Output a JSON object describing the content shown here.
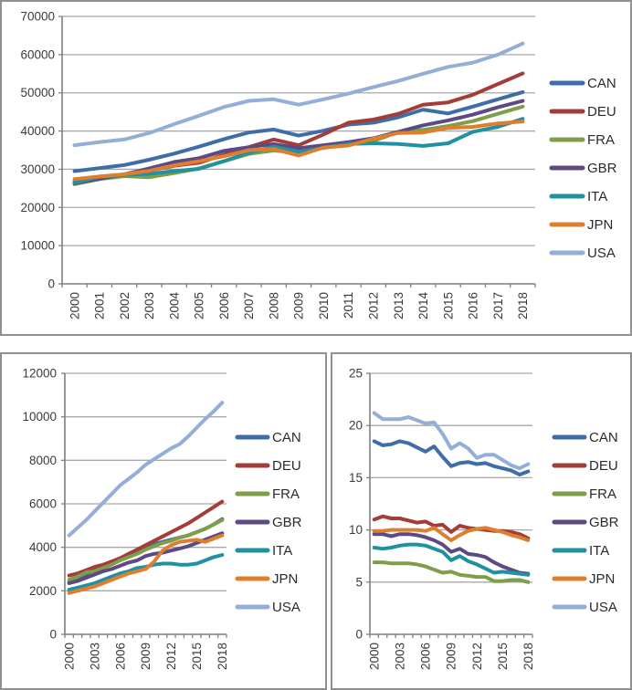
{
  "figure": {
    "description": "Three line charts comparing G7 countries 2000-2018",
    "series_names": [
      "CAN",
      "DEU",
      "FRA",
      "GBR",
      "ITA",
      "JPN",
      "USA"
    ],
    "colors": {
      "CAN": "#3e6da8",
      "DEU": "#a33d3a",
      "FRA": "#7f9e48",
      "GBR": "#5d4a84",
      "ITA": "#2191a2",
      "JPN": "#df7f2e",
      "USA": "#93afd7",
      "gridline": "#a8a8a8",
      "axis": "#7f7f7f",
      "label_text": "#3a3a3a"
    }
  },
  "chart_data": [
    {
      "type": "line",
      "title": "",
      "xlabel": "",
      "ylabel": "",
      "categories": [
        2000,
        2001,
        2002,
        2003,
        2004,
        2005,
        2006,
        2007,
        2008,
        2009,
        2010,
        2011,
        2012,
        2013,
        2014,
        2015,
        2016,
        2017,
        2018
      ],
      "xlabel_every": 1,
      "ylim": [
        0,
        70000
      ],
      "ystep": 10000,
      "yticks": [
        0,
        10000,
        20000,
        30000,
        40000,
        50000,
        60000,
        70000
      ],
      "grid": true,
      "legend_position": "right",
      "series": [
        {
          "name": "CAN",
          "values": [
            29500,
            30300,
            31100,
            32500,
            34100,
            35900,
            37900,
            39600,
            40400,
            38800,
            40100,
            41700,
            42200,
            43600,
            45600,
            44600,
            46400,
            48300,
            50200
          ]
        },
        {
          "name": "DEU",
          "values": [
            27000,
            27900,
            28500,
            29600,
            30900,
            31700,
            33800,
            35800,
            37800,
            36300,
            39100,
            42200,
            43000,
            44500,
            46900,
            47500,
            49500,
            52300,
            55100
          ]
        },
        {
          "name": "FRA",
          "values": [
            26100,
            27400,
            28200,
            27900,
            29000,
            30200,
            32100,
            34000,
            34900,
            34300,
            35600,
            36900,
            37400,
            39700,
            40300,
            41300,
            42600,
            44500,
            46400
          ]
        },
        {
          "name": "GBR",
          "values": [
            26300,
            27500,
            28700,
            30200,
            31900,
            32900,
            34800,
            35800,
            36600,
            35500,
            36300,
            37100,
            38100,
            39800,
            41500,
            42800,
            44300,
            46200,
            47900
          ]
        },
        {
          "name": "ITA",
          "values": [
            26500,
            28000,
            28500,
            28800,
            29500,
            30100,
            32100,
            34300,
            35900,
            34600,
            35600,
            36600,
            36800,
            36600,
            36100,
            36800,
            39800,
            41100,
            43200
          ]
        },
        {
          "name": "JPN",
          "values": [
            27400,
            28100,
            28700,
            29600,
            31000,
            32100,
            33400,
            35000,
            35300,
            33600,
            35700,
            36200,
            38000,
            39500,
            39600,
            40800,
            41100,
            42000,
            42500
          ]
        },
        {
          "name": "USA",
          "values": [
            36300,
            37100,
            37800,
            39500,
            41800,
            44000,
            46300,
            47900,
            48300,
            46900,
            48300,
            49800,
            51500,
            53100,
            55000,
            56800,
            57900,
            60000,
            62900
          ]
        }
      ]
    },
    {
      "type": "line",
      "title": "",
      "xlabel": "",
      "ylabel": "",
      "categories": [
        2000,
        2001,
        2002,
        2003,
        2004,
        2005,
        2006,
        2007,
        2008,
        2009,
        2010,
        2011,
        2012,
        2013,
        2014,
        2015,
        2016,
        2017,
        2018
      ],
      "xlabel_every": 3,
      "ylim": [
        0,
        12000
      ],
      "ystep": 2000,
      "yticks": [
        0,
        2000,
        4000,
        6000,
        8000,
        10000,
        12000
      ],
      "grid": true,
      "legend_position": "right",
      "series": [
        {
          "name": "CAN",
          "values": [
            2400,
            2550,
            2750,
            2950,
            3150,
            3350,
            3500,
            3700,
            3850,
            4000,
            4150,
            4250,
            4350,
            4450,
            4550,
            4700,
            4850,
            5050,
            5300
          ]
        },
        {
          "name": "DEU",
          "values": [
            2700,
            2800,
            2950,
            3100,
            3200,
            3350,
            3500,
            3700,
            3900,
            4100,
            4300,
            4500,
            4700,
            4900,
            5100,
            5350,
            5600,
            5850,
            6100
          ]
        },
        {
          "name": "FRA",
          "values": [
            2500,
            2650,
            2850,
            2900,
            3050,
            3200,
            3400,
            3550,
            3700,
            3900,
            4050,
            4200,
            4300,
            4450,
            4550,
            4700,
            4850,
            5050,
            5250
          ]
        },
        {
          "name": "GBR",
          "values": [
            2350,
            2450,
            2600,
            2750,
            2900,
            3000,
            3150,
            3300,
            3400,
            3600,
            3700,
            3750,
            3850,
            3950,
            4050,
            4200,
            4350,
            4500,
            4650
          ]
        },
        {
          "name": "ITA",
          "values": [
            2050,
            2150,
            2250,
            2350,
            2500,
            2650,
            2800,
            2900,
            3050,
            3100,
            3200,
            3250,
            3250,
            3200,
            3200,
            3250,
            3400,
            3550,
            3650
          ]
        },
        {
          "name": "JPN",
          "values": [
            1900,
            2000,
            2100,
            2200,
            2350,
            2500,
            2650,
            2800,
            2900,
            3000,
            3350,
            3850,
            4100,
            4250,
            4300,
            4350,
            4250,
            4400,
            4550
          ]
        },
        {
          "name": "USA",
          "values": [
            4550,
            4900,
            5250,
            5650,
            6050,
            6450,
            6850,
            7150,
            7450,
            7800,
            8050,
            8300,
            8550,
            8750,
            9100,
            9500,
            9900,
            10250,
            10650
          ]
        }
      ]
    },
    {
      "type": "line",
      "title": "",
      "xlabel": "",
      "ylabel": "",
      "categories": [
        2000,
        2001,
        2002,
        2003,
        2004,
        2005,
        2006,
        2007,
        2008,
        2009,
        2010,
        2011,
        2012,
        2013,
        2014,
        2015,
        2016,
        2017,
        2018
      ],
      "xlabel_every": 3,
      "ylim": [
        0,
        25
      ],
      "ystep": 5,
      "yticks": [
        0,
        5,
        10,
        15,
        20,
        25
      ],
      "grid": true,
      "legend_position": "right",
      "series": [
        {
          "name": "CAN",
          "values": [
            18.5,
            18.1,
            18.2,
            18.5,
            18.3,
            17.9,
            17.5,
            18.0,
            17.0,
            16.1,
            16.4,
            16.5,
            16.3,
            16.4,
            16.1,
            15.9,
            15.7,
            15.3,
            15.6
          ]
        },
        {
          "name": "DEU",
          "values": [
            11.0,
            11.3,
            11.1,
            11.1,
            10.9,
            10.7,
            10.8,
            10.4,
            10.5,
            9.8,
            10.4,
            10.2,
            10.1,
            10.0,
            9.9,
            9.9,
            9.8,
            9.6,
            9.2
          ]
        },
        {
          "name": "FRA",
          "values": [
            6.9,
            6.9,
            6.8,
            6.8,
            6.8,
            6.7,
            6.5,
            6.2,
            5.9,
            6.0,
            5.7,
            5.6,
            5.5,
            5.5,
            5.1,
            5.1,
            5.2,
            5.2,
            5.0
          ]
        },
        {
          "name": "GBR",
          "values": [
            9.6,
            9.6,
            9.4,
            9.6,
            9.6,
            9.5,
            9.3,
            9.0,
            8.6,
            7.9,
            8.2,
            7.7,
            7.6,
            7.4,
            6.9,
            6.5,
            6.2,
            5.9,
            5.8
          ]
        },
        {
          "name": "ITA",
          "values": [
            8.3,
            8.2,
            8.3,
            8.5,
            8.6,
            8.6,
            8.5,
            8.2,
            7.9,
            7.1,
            7.5,
            7.0,
            6.7,
            6.3,
            5.9,
            6.0,
            5.9,
            5.8,
            5.7
          ]
        },
        {
          "name": "JPN",
          "values": [
            9.9,
            9.9,
            10.0,
            10.0,
            10.0,
            10.0,
            9.9,
            10.2,
            9.6,
            9.0,
            9.5,
            9.9,
            10.1,
            10.2,
            10.0,
            9.8,
            9.5,
            9.3,
            9.0
          ]
        },
        {
          "name": "USA",
          "values": [
            21.2,
            20.6,
            20.6,
            20.6,
            20.8,
            20.5,
            20.2,
            20.3,
            19.2,
            17.8,
            18.3,
            17.8,
            16.9,
            17.2,
            17.2,
            16.7,
            16.2,
            15.9,
            16.3
          ]
        }
      ]
    }
  ]
}
